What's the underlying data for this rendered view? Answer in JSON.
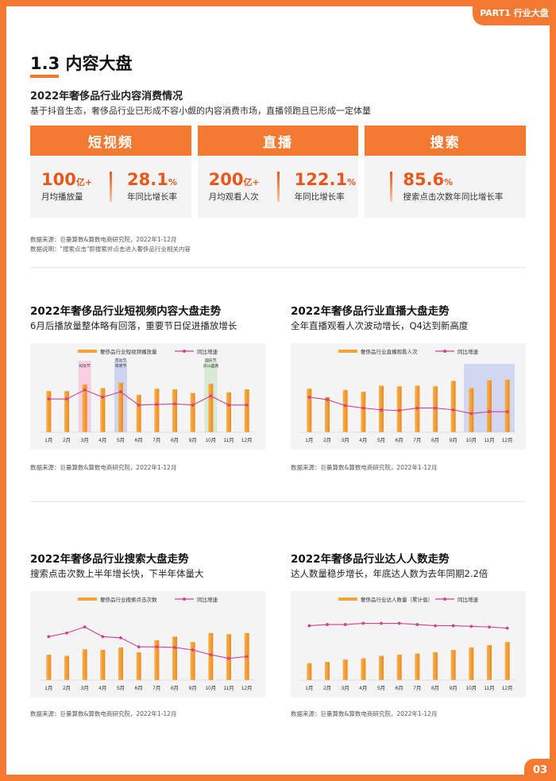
{
  "header": {
    "part_label": "PART1 行业大盘"
  },
  "footer": {
    "page_number": "03"
  },
  "section": {
    "title": "1.3 内容大盘"
  },
  "overview": {
    "title": "2022年奢侈品行业内容消费情况",
    "description": "基于抖音生态，奢侈品行业已形成不容小觑的内容消费市场，直播领跑且已形成一定体量",
    "cards": [
      {
        "header": "短视频",
        "metrics": [
          {
            "value": "100",
            "unit": "亿+",
            "label": "月均播放量"
          },
          {
            "value": "28.1",
            "unit": "%",
            "label": "年同比增长率"
          }
        ]
      },
      {
        "header": "直播",
        "metrics": [
          {
            "value": "200",
            "unit": "亿+",
            "label": "月均观看人次"
          },
          {
            "value": "122.1",
            "unit": "%",
            "label": "年同比增长率"
          }
        ]
      },
      {
        "header": "搜索",
        "metrics": [
          {
            "value": "85.6",
            "unit": "%",
            "label": "搜索点击次数年同比增长率"
          }
        ]
      }
    ],
    "notes": [
      "数据来源：巨量算数&算数电商研究院，2022年1-12月",
      "数据说明：\"搜索点击\"即搜索并点击进入奢侈品行业相关内容"
    ]
  },
  "charts": [
    {
      "title": "2022年奢侈品行业短视频内容大盘走势",
      "subtitle": "6月后播放量整体略有回落，重要节日促进播放增长",
      "source": "数据来源：巨量算数&算数电商研究院，2022年1-12月"
    },
    {
      "title": "2022年奢侈品行业直播大盘走势",
      "subtitle": "全年直播观看人次波动增长，Q4达到新高度",
      "source": "数据来源：巨量算数&算数电商研究院，2022年1-12月"
    },
    {
      "title": "2022年奢侈品行业搜索大盘走势",
      "subtitle": "搜索点击次数上半年增长快，下半年体量大",
      "source": "数据来源：巨量算数&算数电商研究院，2022年1-12月"
    },
    {
      "title": "2022年奢侈品行业达人人数走势",
      "subtitle": "达人数量稳步增长，年底达人数为去年同期2.2倍",
      "source": "数据来源：巨量算数&算数电商研究院，2022年1-12月"
    }
  ],
  "colors": {
    "accent": "#f47a32",
    "bar": "#f5a23c",
    "line": "#d2428f",
    "highlight_pink": "#f6c6dc",
    "highlight_blue": "#c5cdf0"
  },
  "chart_data": [
    {
      "type": "bar",
      "categories": [
        "1月",
        "2月",
        "3月",
        "4月",
        "5月",
        "6月",
        "7月",
        "8月",
        "9月",
        "10月",
        "11月",
        "12月"
      ],
      "series": [
        {
          "name": "奢侈品行业短视频播放量",
          "type": "bar",
          "values": [
            68,
            68,
            79,
            73,
            82,
            62,
            72,
            71,
            65,
            80,
            66,
            71
          ]
        },
        {
          "name": "同比增速",
          "type": "line",
          "values": [
            55,
            55,
            70,
            58,
            67,
            45,
            46,
            47,
            45,
            60,
            45,
            45
          ]
        }
      ],
      "ylim": [
        0,
        100
      ],
      "annotations": [
        {
          "label": "妇女节",
          "month": "3月",
          "color": "pink"
        },
        {
          "label": "劳动节母亲节",
          "month": "5月",
          "color": "blue"
        },
        {
          "label": "国庆节双11盛典",
          "month": "10月",
          "color": "green"
        }
      ]
    },
    {
      "type": "bar",
      "categories": [
        "1月",
        "2月",
        "3月",
        "4月",
        "5月",
        "6月",
        "7月",
        "8月",
        "9月",
        "10月",
        "11月",
        "12月"
      ],
      "series": [
        {
          "name": "奢侈品行业直播观看人次",
          "type": "bar",
          "values": [
            72,
            58,
            70,
            67,
            77,
            76,
            77,
            76,
            85,
            73,
            86,
            87
          ]
        },
        {
          "name": "同比增速",
          "type": "line",
          "values": [
            58,
            54,
            44,
            40,
            37,
            36,
            40,
            40,
            37,
            31,
            34,
            34
          ]
        }
      ],
      "ylim": [
        0,
        100
      ],
      "highlight": [
        "10月",
        "12月"
      ]
    },
    {
      "type": "bar",
      "categories": [
        "1月",
        "2月",
        "3月",
        "4月",
        "5月",
        "6月",
        "7月",
        "8月",
        "9月",
        "10月",
        "11月",
        "12月"
      ],
      "series": [
        {
          "name": "奢侈品行业搜索点击次数",
          "type": "bar",
          "values": [
            42,
            40,
            51,
            50,
            54,
            46,
            66,
            72,
            63,
            78,
            76,
            78
          ]
        },
        {
          "name": "同比增速",
          "type": "line",
          "values": [
            72,
            78,
            88,
            72,
            70,
            55,
            55,
            54,
            50,
            42,
            36,
            39
          ]
        }
      ],
      "ylim": [
        0,
        100
      ]
    },
    {
      "type": "bar",
      "categories": [
        "1月",
        "2月",
        "3月",
        "4月",
        "5月",
        "6月",
        "7月",
        "8月",
        "9月",
        "10月",
        "11月",
        "12月"
      ],
      "series": [
        {
          "name": "奢侈品行业达人数量（累计值）",
          "type": "bar",
          "values": [
            28,
            30,
            34,
            36,
            40,
            42,
            44,
            46,
            50,
            54,
            58,
            63
          ]
        },
        {
          "name": "同比增速",
          "type": "line",
          "values": [
            90,
            92,
            92,
            94,
            94,
            94,
            92,
            90,
            90,
            89,
            88,
            86
          ]
        }
      ],
      "ylim": [
        0,
        100
      ]
    }
  ]
}
